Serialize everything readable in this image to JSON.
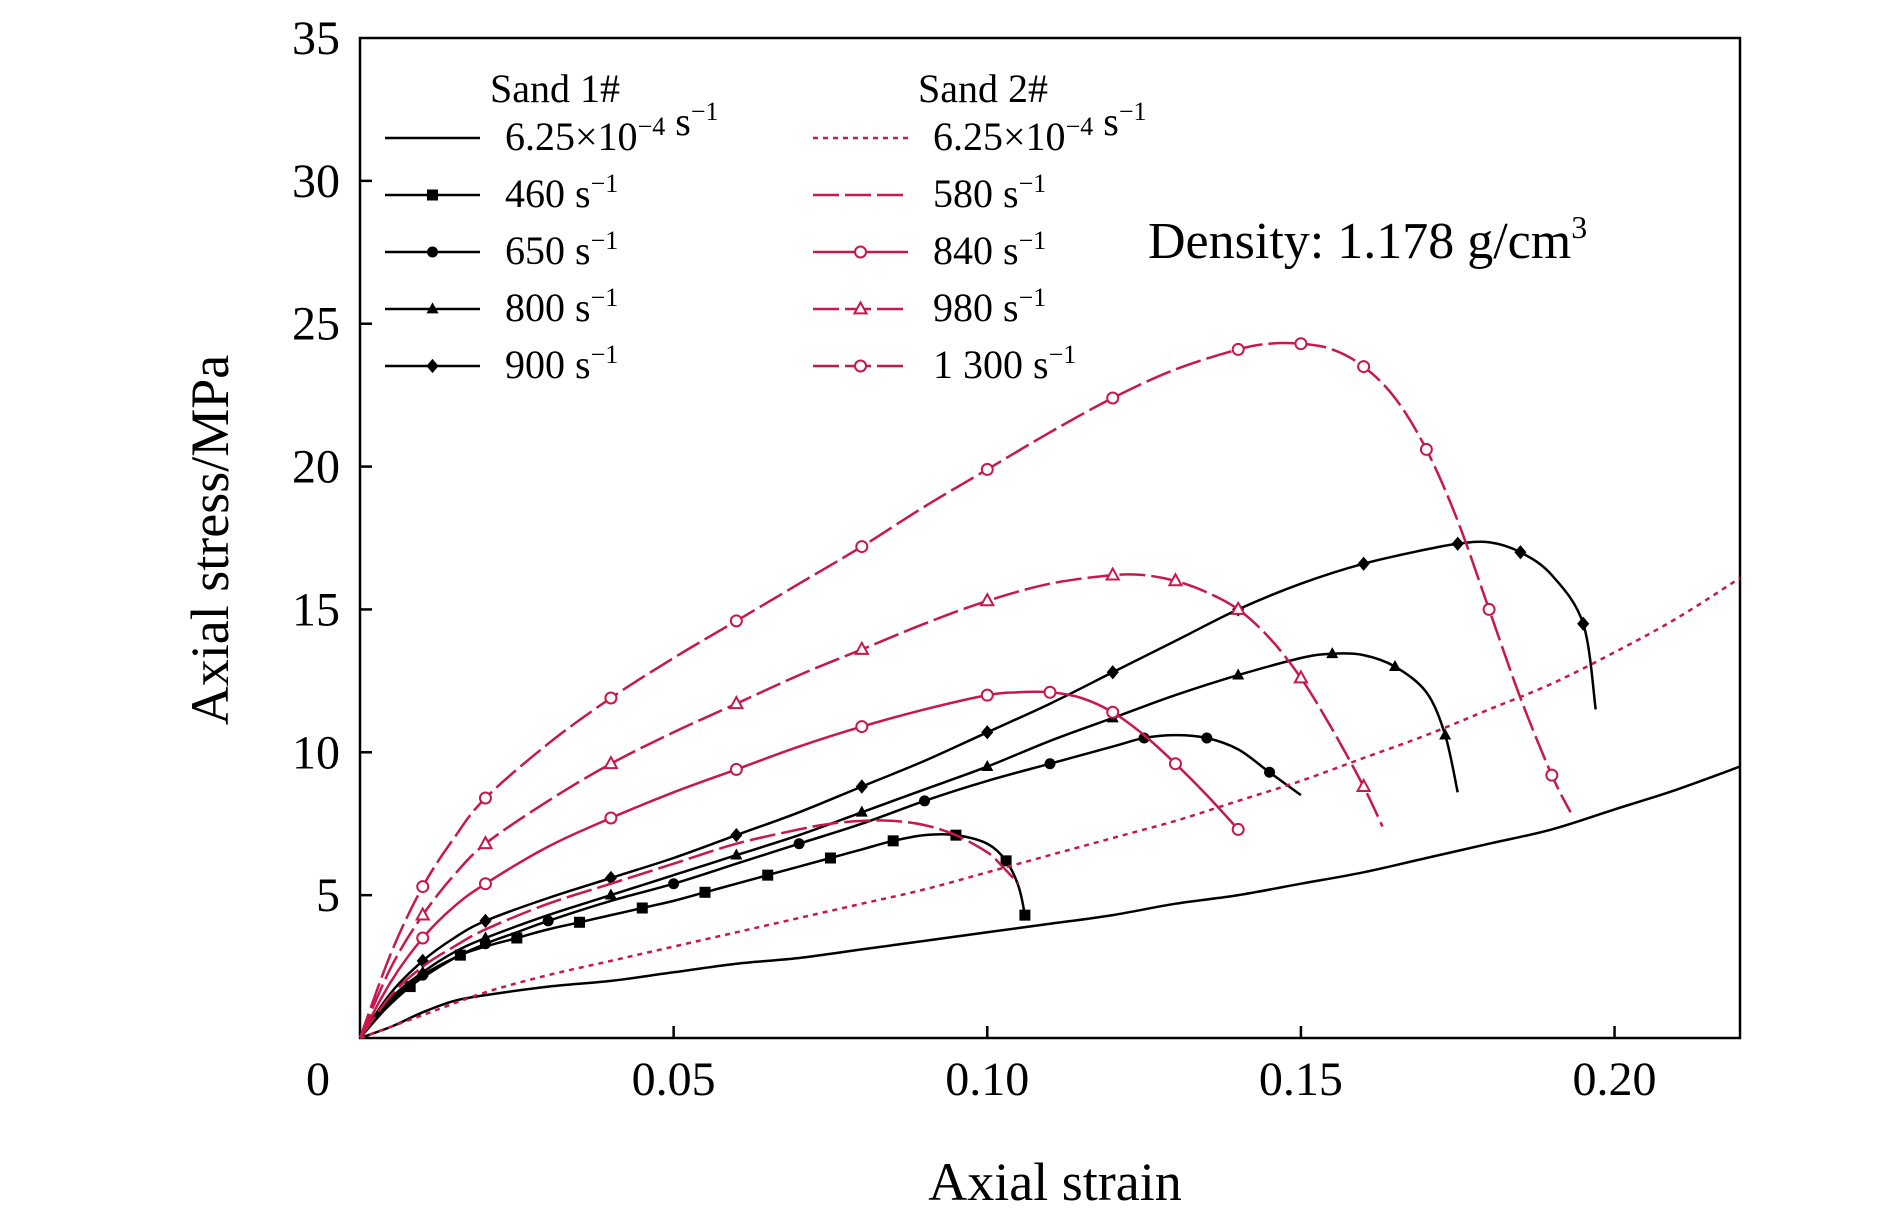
{
  "chart_data": {
    "type": "line",
    "xlabel": "Axial strain",
    "ylabel": "Axial stress/MPa",
    "xlim": [
      0,
      0.22
    ],
    "ylim": [
      0,
      35
    ],
    "x_ticks": [
      0,
      0.05,
      0.1,
      0.15,
      0.2
    ],
    "x_tick_labels": [
      "0",
      "0.05",
      "0.10",
      "0.15",
      "0.20"
    ],
    "y_ticks": [
      5,
      10,
      15,
      20,
      25,
      30,
      35
    ],
    "y_tick_labels": [
      "5",
      "10",
      "15",
      "20",
      "25",
      "30",
      "35"
    ],
    "grid": false,
    "legend_position": "top-left",
    "annotation": {
      "prefix": "Density: 1.178 g/cm",
      "sup": "3"
    },
    "groups": [
      {
        "name": "Sand 1#",
        "color": "#000000"
      },
      {
        "name": "Sand 2#",
        "color": "#c8174a"
      }
    ],
    "series": [
      {
        "name": "6.25×10",
        "exp": "−4",
        "unit": " s",
        "uexp": "−1",
        "group": 0,
        "color": "#000000",
        "style": "solid",
        "marker": "none",
        "x": [
          0,
          0.005,
          0.01,
          0.015,
          0.02,
          0.03,
          0.04,
          0.05,
          0.06,
          0.07,
          0.08,
          0.09,
          0.1,
          0.11,
          0.12,
          0.13,
          0.14,
          0.15,
          0.16,
          0.17,
          0.18,
          0.19,
          0.2,
          0.21,
          0.22
        ],
        "y": [
          0,
          0.4,
          0.9,
          1.3,
          1.5,
          1.8,
          2.0,
          2.3,
          2.6,
          2.8,
          3.1,
          3.4,
          3.7,
          4.0,
          4.3,
          4.7,
          5.0,
          5.4,
          5.8,
          6.3,
          6.8,
          7.3,
          8.0,
          8.7,
          9.5
        ]
      },
      {
        "name": "460",
        "unit": " s",
        "uexp": "−1",
        "group": 0,
        "color": "#000000",
        "style": "solid",
        "marker": "square",
        "x": [
          0,
          0.004,
          0.008,
          0.012,
          0.016,
          0.02,
          0.025,
          0.03,
          0.035,
          0.04,
          0.045,
          0.05,
          0.055,
          0.06,
          0.065,
          0.07,
          0.075,
          0.08,
          0.085,
          0.09,
          0.095,
          0.1,
          0.103,
          0.105,
          0.106
        ],
        "y": [
          0,
          1.0,
          1.8,
          2.4,
          2.9,
          3.2,
          3.5,
          3.8,
          4.05,
          4.3,
          4.55,
          4.8,
          5.1,
          5.4,
          5.7,
          6.0,
          6.3,
          6.6,
          6.9,
          7.1,
          7.1,
          6.8,
          6.2,
          5.3,
          4.3
        ]
      },
      {
        "name": "650",
        "unit": " s",
        "uexp": "−1",
        "group": 0,
        "color": "#000000",
        "style": "solid",
        "marker": "circle",
        "x": [
          0,
          0.005,
          0.01,
          0.015,
          0.02,
          0.025,
          0.03,
          0.04,
          0.05,
          0.06,
          0.07,
          0.08,
          0.09,
          0.1,
          0.11,
          0.12,
          0.125,
          0.13,
          0.135,
          0.14,
          0.145,
          0.15
        ],
        "y": [
          0,
          1.3,
          2.2,
          2.8,
          3.3,
          3.7,
          4.1,
          4.8,
          5.4,
          6.1,
          6.8,
          7.5,
          8.3,
          9.0,
          9.6,
          10.2,
          10.5,
          10.6,
          10.5,
          10.1,
          9.3,
          8.5
        ]
      },
      {
        "name": "800",
        "unit": " s",
        "uexp": "−1",
        "group": 0,
        "color": "#000000",
        "style": "solid",
        "marker": "triangle",
        "x": [
          0,
          0.005,
          0.01,
          0.015,
          0.02,
          0.03,
          0.04,
          0.05,
          0.06,
          0.07,
          0.08,
          0.09,
          0.1,
          0.11,
          0.12,
          0.13,
          0.14,
          0.15,
          0.155,
          0.16,
          0.165,
          0.17,
          0.173,
          0.175
        ],
        "y": [
          0,
          1.4,
          2.3,
          3.0,
          3.5,
          4.3,
          5.0,
          5.7,
          6.4,
          7.1,
          7.9,
          8.7,
          9.5,
          10.4,
          11.2,
          12.0,
          12.7,
          13.3,
          13.45,
          13.4,
          13.0,
          12.1,
          10.6,
          8.6
        ]
      },
      {
        "name": "900",
        "unit": " s",
        "uexp": "−1",
        "group": 0,
        "color": "#000000",
        "style": "solid",
        "marker": "diamond",
        "x": [
          0,
          0.005,
          0.01,
          0.015,
          0.02,
          0.03,
          0.04,
          0.05,
          0.06,
          0.07,
          0.08,
          0.09,
          0.1,
          0.11,
          0.12,
          0.13,
          0.14,
          0.15,
          0.16,
          0.17,
          0.175,
          0.18,
          0.185,
          0.19,
          0.195,
          0.197
        ],
        "y": [
          0,
          1.6,
          2.7,
          3.5,
          4.1,
          4.9,
          5.6,
          6.3,
          7.1,
          7.9,
          8.8,
          9.7,
          10.7,
          11.7,
          12.8,
          13.9,
          15.0,
          15.9,
          16.6,
          17.1,
          17.3,
          17.35,
          17.0,
          16.2,
          14.5,
          11.5
        ]
      },
      {
        "name": "6.25×10",
        "exp": "−4",
        "unit": " s",
        "uexp": "−1",
        "group": 1,
        "color": "#c8174a",
        "style": "dotted",
        "marker": "none",
        "x": [
          0,
          0.01,
          0.02,
          0.03,
          0.04,
          0.05,
          0.06,
          0.07,
          0.08,
          0.09,
          0.1,
          0.11,
          0.12,
          0.13,
          0.14,
          0.15,
          0.16,
          0.17,
          0.18,
          0.19,
          0.2,
          0.21,
          0.22
        ],
        "y": [
          0,
          0.8,
          1.6,
          2.2,
          2.7,
          3.2,
          3.7,
          4.2,
          4.7,
          5.2,
          5.8,
          6.4,
          7.0,
          7.6,
          8.3,
          9.0,
          9.8,
          10.6,
          11.5,
          12.4,
          13.5,
          14.7,
          16.1
        ]
      },
      {
        "name": "580",
        "unit": " s",
        "uexp": "−1",
        "group": 1,
        "color": "#c8174a",
        "style": "longdash",
        "marker": "none",
        "x": [
          0,
          0.005,
          0.01,
          0.015,
          0.02,
          0.03,
          0.04,
          0.05,
          0.06,
          0.07,
          0.075,
          0.08,
          0.085,
          0.09,
          0.095,
          0.1,
          0.102,
          0.105
        ],
        "y": [
          0,
          1.5,
          2.5,
          3.2,
          3.8,
          4.7,
          5.4,
          6.1,
          6.8,
          7.3,
          7.5,
          7.6,
          7.6,
          7.45,
          7.1,
          6.5,
          6.1,
          5.4
        ]
      },
      {
        "name": "840",
        "unit": " s",
        "uexp": "−1",
        "group": 1,
        "color": "#c8174a",
        "style": "solid",
        "marker": "open-circle",
        "x": [
          0,
          0.005,
          0.01,
          0.015,
          0.02,
          0.03,
          0.04,
          0.05,
          0.06,
          0.07,
          0.08,
          0.09,
          0.1,
          0.105,
          0.11,
          0.115,
          0.12,
          0.125,
          0.13,
          0.135,
          0.14
        ],
        "y": [
          0,
          2.0,
          3.5,
          4.6,
          5.4,
          6.7,
          7.7,
          8.6,
          9.4,
          10.2,
          10.9,
          11.5,
          12.0,
          12.1,
          12.1,
          11.9,
          11.4,
          10.6,
          9.6,
          8.5,
          7.3
        ]
      },
      {
        "name": "980",
        "unit": " s",
        "uexp": "−1",
        "group": 1,
        "color": "#c8174a",
        "style": "longdash",
        "marker": "open-triangle",
        "x": [
          0,
          0.005,
          0.01,
          0.015,
          0.02,
          0.03,
          0.04,
          0.05,
          0.06,
          0.07,
          0.08,
          0.09,
          0.1,
          0.11,
          0.12,
          0.125,
          0.13,
          0.135,
          0.14,
          0.145,
          0.15,
          0.155,
          0.16,
          0.163
        ],
        "y": [
          0,
          2.5,
          4.3,
          5.7,
          6.8,
          8.3,
          9.6,
          10.7,
          11.7,
          12.7,
          13.6,
          14.5,
          15.3,
          15.9,
          16.2,
          16.2,
          16.0,
          15.6,
          15.0,
          14.0,
          12.6,
          10.8,
          8.8,
          7.4
        ]
      },
      {
        "name": "1 300",
        "unit": " s",
        "uexp": "−1",
        "group": 1,
        "color": "#c8174a",
        "style": "longdash",
        "marker": "open-circle",
        "x": [
          0,
          0.005,
          0.01,
          0.015,
          0.02,
          0.03,
          0.04,
          0.05,
          0.06,
          0.07,
          0.08,
          0.09,
          0.1,
          0.11,
          0.12,
          0.13,
          0.14,
          0.145,
          0.15,
          0.155,
          0.16,
          0.165,
          0.17,
          0.175,
          0.18,
          0.185,
          0.19,
          0.193
        ],
        "y": [
          0,
          3.0,
          5.3,
          7.0,
          8.4,
          10.3,
          11.9,
          13.3,
          14.6,
          15.9,
          17.2,
          18.6,
          19.9,
          21.2,
          22.4,
          23.4,
          24.1,
          24.3,
          24.3,
          24.1,
          23.5,
          22.4,
          20.6,
          18.1,
          15.0,
          11.9,
          9.2,
          7.9
        ]
      }
    ]
  }
}
